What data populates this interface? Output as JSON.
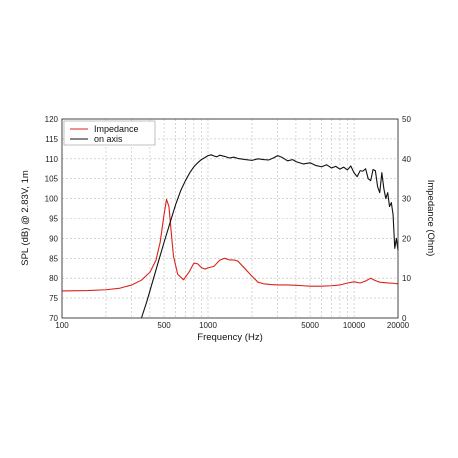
{
  "chart_data": {
    "type": "line",
    "xlabel": "Frequency (Hz)",
    "ylabel_left": "SPL (dB) @ 2.83V, 1m",
    "ylabel_right": "Impedance (Ohm)",
    "x_scale": "log",
    "xlim": [
      100,
      20000
    ],
    "ylim_left": [
      70,
      120
    ],
    "ylim_right": [
      0,
      50
    ],
    "x_tick_labels": [
      "100",
      "500",
      "1000",
      "5000",
      "10000",
      "20000"
    ],
    "y_left_tick_labels": [
      "70",
      "75",
      "80",
      "85",
      "90",
      "95",
      "100",
      "105",
      "110",
      "115",
      "120"
    ],
    "y_right_tick_labels": [
      "0",
      "10",
      "20",
      "30",
      "40",
      "50"
    ],
    "grid": true,
    "legend_position": "top-left",
    "series": [
      {
        "name": "Impedance",
        "axis": "right",
        "color": "#d9231c",
        "x": [
          100,
          150,
          200,
          250,
          300,
          350,
          400,
          440,
          470,
          500,
          520,
          540,
          560,
          580,
          620,
          680,
          740,
          800,
          850,
          900,
          950,
          1000,
          1100,
          1200,
          1300,
          1400,
          1500,
          1600,
          1750,
          2000,
          2200,
          2400,
          2700,
          3000,
          3500,
          4000,
          4500,
          5000,
          6000,
          7000,
          8000,
          9000,
          10000,
          11000,
          12000,
          13000,
          14000,
          15000,
          17000,
          19000,
          20000
        ],
        "y": [
          6.8,
          6.9,
          7.1,
          7.5,
          8.3,
          9.5,
          11.5,
          14.5,
          19.0,
          26.0,
          29.8,
          28.0,
          21.5,
          15.5,
          11.0,
          9.6,
          11.5,
          13.8,
          13.6,
          12.7,
          12.3,
          12.6,
          13.0,
          14.5,
          15.0,
          14.6,
          14.6,
          14.3,
          12.8,
          10.5,
          9.0,
          8.6,
          8.4,
          8.3,
          8.3,
          8.2,
          8.1,
          8.0,
          8.0,
          8.1,
          8.3,
          8.8,
          9.1,
          8.8,
          9.3,
          10.0,
          9.4,
          9.0,
          8.8,
          8.7,
          8.6
        ]
      },
      {
        "name": "on axis",
        "axis": "left",
        "color": "#111111",
        "x": [
          350,
          380,
          420,
          460,
          500,
          550,
          600,
          650,
          700,
          750,
          800,
          850,
          900,
          950,
          1000,
          1050,
          1100,
          1150,
          1200,
          1300,
          1400,
          1500,
          1600,
          1800,
          2000,
          2200,
          2400,
          2600,
          2800,
          3000,
          3200,
          3500,
          3800,
          4000,
          4500,
          5000,
          5500,
          6000,
          6500,
          7000,
          7500,
          8000,
          8500,
          9000,
          9500,
          10000,
          10500,
          11000,
          11500,
          12000,
          12500,
          13000,
          13500,
          14000,
          14500,
          15000,
          15500,
          16000,
          16500,
          17000,
          17500,
          18000,
          18500,
          19000,
          19500,
          20000
        ],
        "y": [
          70.0,
          74.0,
          79.5,
          84.5,
          89.0,
          94.0,
          98.5,
          102.0,
          104.5,
          106.5,
          108.0,
          109.0,
          109.8,
          110.3,
          110.8,
          111.0,
          110.7,
          110.5,
          110.9,
          110.6,
          110.2,
          110.4,
          110.1,
          109.8,
          109.6,
          110.0,
          109.8,
          109.7,
          110.2,
          110.8,
          110.4,
          109.5,
          109.8,
          109.3,
          108.7,
          109.0,
          108.3,
          108.0,
          108.5,
          107.7,
          108.1,
          107.4,
          107.9,
          107.2,
          108.2,
          106.5,
          105.5,
          107.0,
          106.9,
          107.5,
          105.0,
          104.5,
          107.3,
          107.0,
          103.0,
          101.5,
          106.5,
          102.5,
          100.0,
          101.5,
          98.0,
          99.0,
          96.0,
          87.5,
          90.0,
          87.0
        ]
      }
    ]
  }
}
